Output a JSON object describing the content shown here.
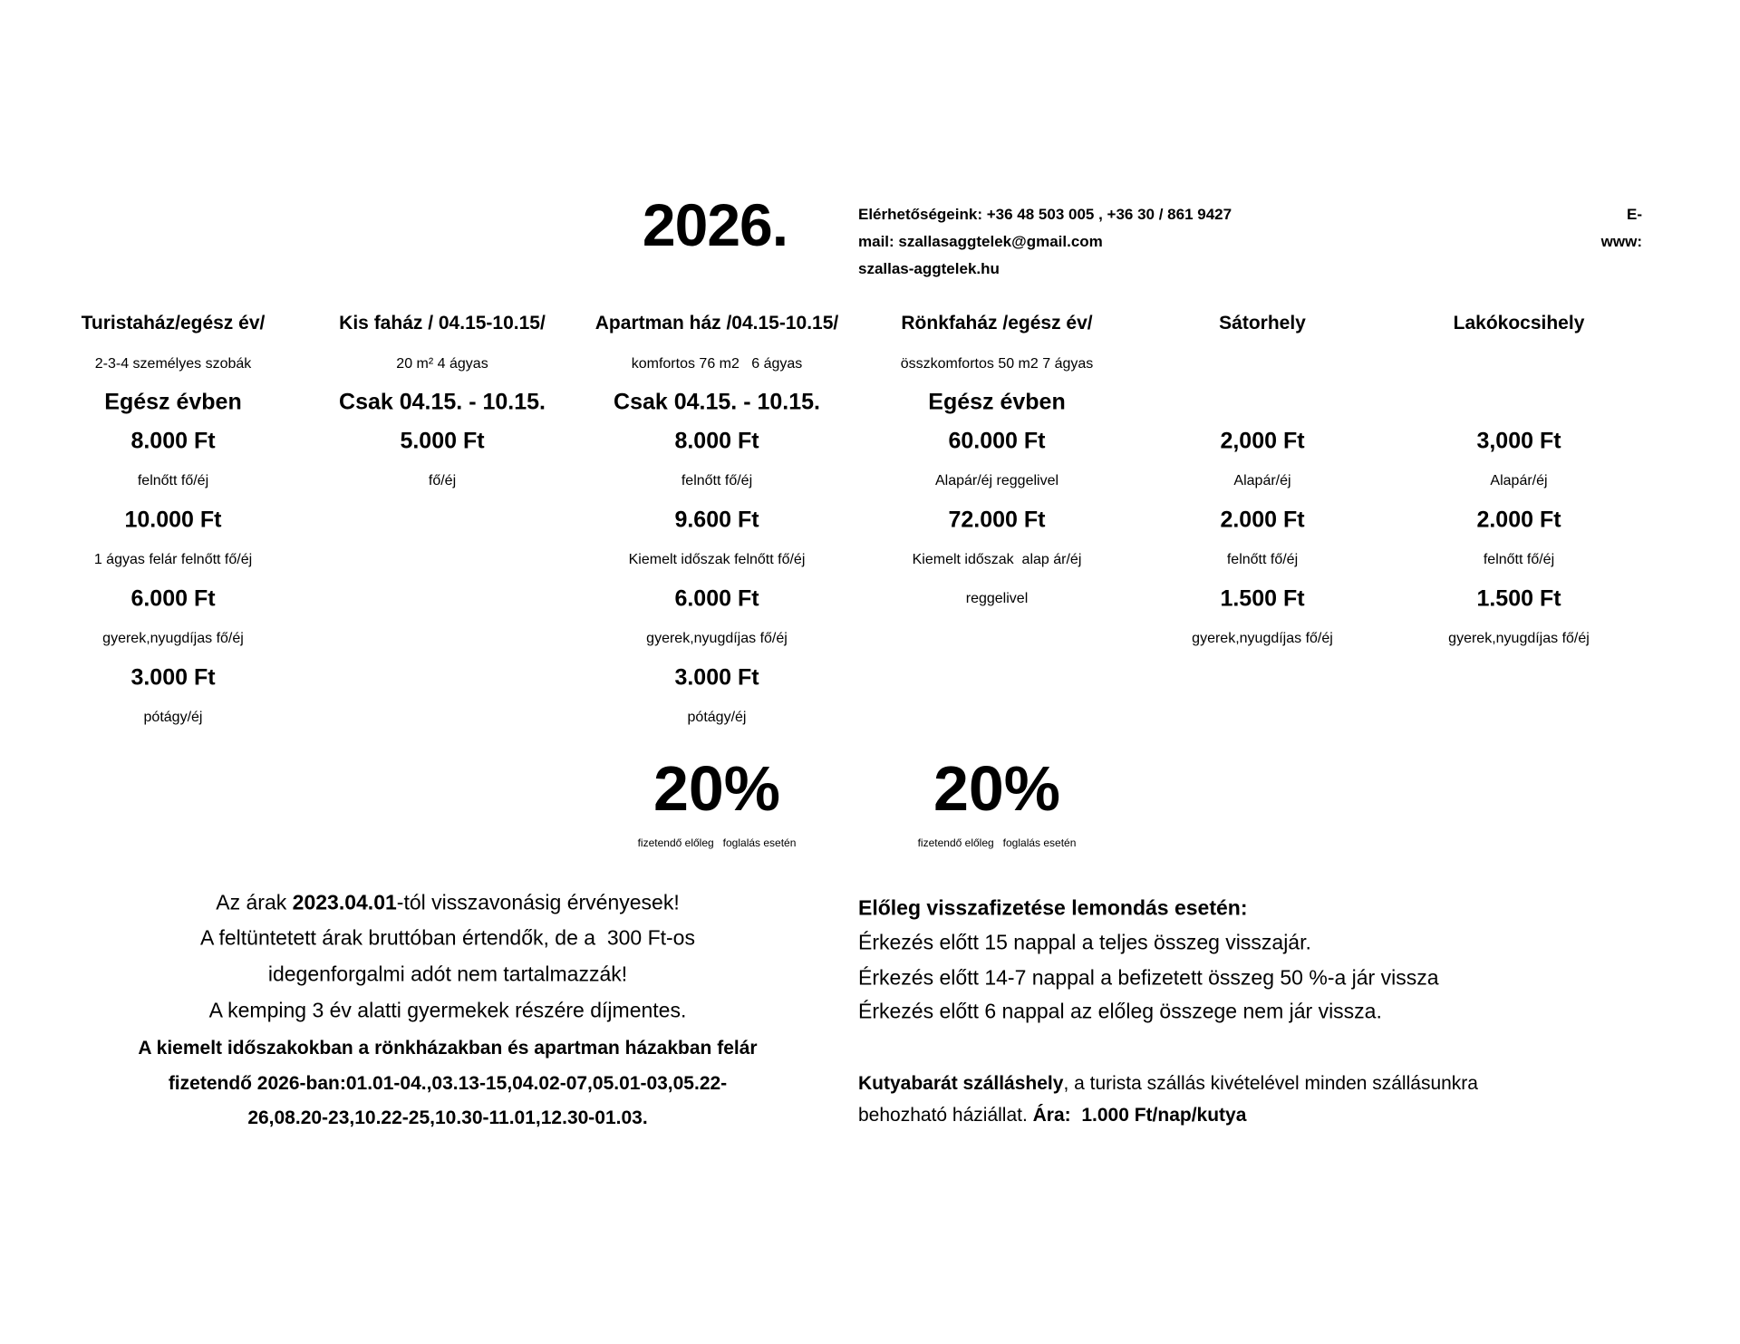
{
  "header": {
    "year": "2026.",
    "contact_lines": [
      "Elérhetőségeink: +36 48 503 005 , +36 30 / 861 9427",
      "mail: szallasaggtelek@gmail.com",
      "szallas-aggtelek.hu"
    ],
    "contact_right": [
      "E-",
      "www:"
    ]
  },
  "columns": [
    {
      "cells": [
        {
          "kind": "title",
          "text": "Turistaház/egész év/"
        },
        {
          "kind": "sub",
          "text": "2-3-4 személyes szobák"
        },
        {
          "kind": "season",
          "text": "Egész évben"
        },
        {
          "kind": "price",
          "text": "8.000 Ft"
        },
        {
          "kind": "label",
          "text": "felnőtt fő/éj"
        },
        {
          "kind": "price",
          "text": "10.000 Ft"
        },
        {
          "kind": "label",
          "text": "1 ágyas felár felnőtt fő/éj"
        },
        {
          "kind": "price",
          "text": "6.000 Ft"
        },
        {
          "kind": "label",
          "text": "gyerek,nyugdíjas fő/éj"
        },
        {
          "kind": "price",
          "text": "3.000 Ft"
        },
        {
          "kind": "label",
          "text": "pótágy/éj"
        }
      ]
    },
    {
      "cells": [
        {
          "kind": "title",
          "text": "Kis faház / 04.15-10.15/"
        },
        {
          "kind": "sub",
          "text": "20 m² 4 ágyas"
        },
        {
          "kind": "season",
          "text": "Csak 04.15. - 10.15."
        },
        {
          "kind": "price",
          "text": "5.000 Ft"
        },
        {
          "kind": "label",
          "text": "fő/éj"
        }
      ]
    },
    {
      "cells": [
        {
          "kind": "title",
          "text": "Apartman ház /04.15-10.15/"
        },
        {
          "kind": "sub",
          "text": "komfortos 76 m2   6 ágyas"
        },
        {
          "kind": "season",
          "text": "Csak 04.15. - 10.15."
        },
        {
          "kind": "price",
          "text": "8.000 Ft"
        },
        {
          "kind": "label",
          "text": "felnőtt fő/éj"
        },
        {
          "kind": "price",
          "text": "9.600 Ft"
        },
        {
          "kind": "label",
          "text": "Kiemelt időszak felnőtt fő/éj"
        },
        {
          "kind": "price",
          "text": "6.000 Ft"
        },
        {
          "kind": "label",
          "text": "gyerek,nyugdíjas fő/éj"
        },
        {
          "kind": "price",
          "text": "3.000 Ft"
        },
        {
          "kind": "label",
          "text": "pótágy/éj"
        }
      ]
    },
    {
      "cells": [
        {
          "kind": "title",
          "text": "Rönkfaház /egész év/"
        },
        {
          "kind": "sub",
          "text": "összkomfortos 50 m2 7 ágyas"
        },
        {
          "kind": "season",
          "text": "Egész évben"
        },
        {
          "kind": "price",
          "text": "60.000 Ft"
        },
        {
          "kind": "label",
          "text": "Alapár/éj reggelivel"
        },
        {
          "kind": "price",
          "text": "72.000 Ft"
        },
        {
          "kind": "label",
          "text": "Kiemelt időszak  alap ár/éj"
        },
        {
          "kind": "label",
          "text": "reggelivel"
        }
      ]
    },
    {
      "cells": [
        {
          "kind": "title",
          "text": "Sátorhely"
        },
        null,
        null,
        {
          "kind": "price",
          "text": "2,000 Ft"
        },
        {
          "kind": "label",
          "text": "Alapár/éj"
        },
        {
          "kind": "price",
          "text": "2.000 Ft"
        },
        {
          "kind": "label",
          "text": "felnőtt fő/éj"
        },
        {
          "kind": "price",
          "text": "1.500 Ft"
        },
        {
          "kind": "label",
          "text": "gyerek,nyugdíjas fő/éj"
        }
      ]
    },
    {
      "cells": [
        {
          "kind": "title",
          "text": "Lakókocsihely"
        },
        null,
        null,
        {
          "kind": "price",
          "text": "3,000 Ft"
        },
        {
          "kind": "label",
          "text": "Alapár/éj"
        },
        {
          "kind": "price",
          "text": "2.000 Ft"
        },
        {
          "kind": "label",
          "text": "felnőtt fő/éj"
        },
        {
          "kind": "price",
          "text": "1.500 Ft"
        },
        {
          "kind": "label",
          "text": "gyerek,nyugdíjas fő/éj"
        }
      ]
    }
  ],
  "deposits": [
    {
      "percent": "20%",
      "caption": "fizetendő előleg   foglalás esetén"
    },
    {
      "percent": "20%",
      "caption": "fizetendő előleg   foglalás esetén"
    }
  ],
  "notes_left": [
    {
      "bold": false,
      "segments": [
        {
          "text": "Az árak ",
          "bold": false
        },
        {
          "text": "2023.04.01",
          "bold": true
        },
        {
          "text": "-tól visszavonásig érvényesek!",
          "bold": false
        }
      ]
    },
    {
      "bold": false,
      "segments": [
        {
          "text": "A feltüntetett árak bruttóban értendők, de a  300 Ft-os",
          "bold": false
        }
      ]
    },
    {
      "bold": false,
      "segments": [
        {
          "text": "idegenforgalmi adót nem tartalmazzák!",
          "bold": false
        }
      ]
    },
    {
      "bold": false,
      "segments": [
        {
          "text": "A kemping 3 év alatti gyermekek részére díjmentes.",
          "bold": false
        }
      ]
    },
    {
      "bold": true,
      "segments": [
        {
          "text": "A kiemelt időszakokban a rönkházakban és apartman házakban felár",
          "bold": true
        }
      ]
    },
    {
      "bold": true,
      "segments": [
        {
          "text": "fizetendő 2026-ban:01.01-04.,03.13-15,04.02-07,05.01-03,05.22-",
          "bold": true
        }
      ]
    },
    {
      "bold": true,
      "segments": [
        {
          "text": "26,08.20-23,10.22-25,10.30-11.01,12.30-01.03.",
          "bold": true
        }
      ]
    }
  ],
  "notes_right": [
    {
      "segments": [
        {
          "text": "Előleg visszafizetése lemondás esetén:",
          "bold": true
        }
      ]
    },
    {
      "segments": [
        {
          "text": "Érkezés előtt 15 nappal a teljes összeg visszajár.",
          "bold": false
        }
      ]
    },
    {
      "segments": [
        {
          "text": "Érkezés előtt 14-7 nappal a befizetett összeg 50 %-a jár vissza",
          "bold": false
        }
      ]
    },
    {
      "segments": [
        {
          "text": "Érkezés előtt 6 nappal az előleg összege nem jár vissza.",
          "bold": false
        }
      ]
    },
    {
      "segments": [
        {
          "text": "Kutyabarát szálláshely",
          "bold": true
        },
        {
          "text": ", a turista szállás kivételével minden szállásunkra",
          "bold": false
        }
      ]
    },
    {
      "segments": [
        {
          "text": "behozható háziállat. ",
          "bold": false
        },
        {
          "text": "Ára:  1.000 Ft/nap/kutya",
          "bold": true
        }
      ]
    }
  ]
}
